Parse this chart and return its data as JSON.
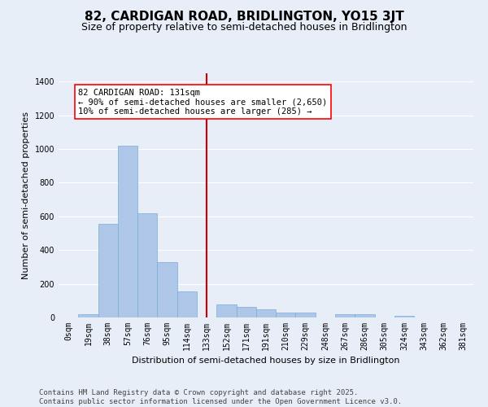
{
  "title": "82, CARDIGAN ROAD, BRIDLINGTON, YO15 3JT",
  "subtitle": "Size of property relative to semi-detached houses in Bridlington",
  "xlabel": "Distribution of semi-detached houses by size in Bridlington",
  "ylabel": "Number of semi-detached properties",
  "categories": [
    "0sqm",
    "19sqm",
    "38sqm",
    "57sqm",
    "76sqm",
    "95sqm",
    "114sqm",
    "133sqm",
    "152sqm",
    "171sqm",
    "191sqm",
    "210sqm",
    "229sqm",
    "248sqm",
    "267sqm",
    "286sqm",
    "305sqm",
    "324sqm",
    "343sqm",
    "362sqm",
    "381sqm"
  ],
  "bar_values": [
    0,
    20,
    555,
    1020,
    620,
    330,
    155,
    0,
    75,
    65,
    50,
    30,
    30,
    0,
    20,
    20,
    0,
    10,
    0,
    0,
    0
  ],
  "bar_color": "#aec6e8",
  "bar_edge_color": "#7aadd4",
  "background_color": "#e8eef8",
  "grid_color": "#ffffff",
  "annotation_line1": "82 CARDIGAN ROAD: 131sqm",
  "annotation_line2": "← 90% of semi-detached houses are smaller (2,650)",
  "annotation_line3": "10% of semi-detached houses are larger (285) →",
  "vline_color": "#cc0000",
  "vline_x": 7.0,
  "ylim": [
    0,
    1450
  ],
  "yticks": [
    0,
    200,
    400,
    600,
    800,
    1000,
    1200,
    1400
  ],
  "footer_line1": "Contains HM Land Registry data © Crown copyright and database right 2025.",
  "footer_line2": "Contains public sector information licensed under the Open Government Licence v3.0.",
  "title_fontsize": 11,
  "subtitle_fontsize": 9,
  "axis_label_fontsize": 8,
  "tick_fontsize": 7,
  "annotation_fontsize": 7.5,
  "footer_fontsize": 6.5
}
